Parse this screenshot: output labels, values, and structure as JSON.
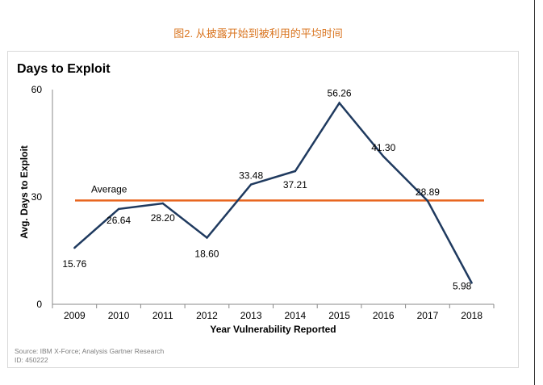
{
  "caption": "图2. 从披露开始到被利用的平均时间",
  "source_line": "Source: IBM X-Force; Analysis Gartner Research",
  "id_line": "ID: 450222",
  "colors": {
    "caption": "#d9741f",
    "line": "#1f3a5f",
    "average": "#e8641e",
    "axis": "#888888",
    "text": "#000000"
  },
  "chart_data": {
    "type": "line",
    "title": "Days to Exploit",
    "xlabel": "Year Vulnerability Reported",
    "ylabel": "Avg. Days to Exploit",
    "categories": [
      "2009",
      "2010",
      "2011",
      "2012",
      "2013",
      "2014",
      "2015",
      "2016",
      "2017",
      "2018"
    ],
    "series": [
      {
        "name": "Days to Exploit",
        "values": [
          15.76,
          26.64,
          28.2,
          18.6,
          33.48,
          37.21,
          56.26,
          41.3,
          28.89,
          5.98
        ]
      }
    ],
    "data_labels": [
      "15.76",
      "26.64",
      "28.20",
      "18.60",
      "33.48",
      "37.21",
      "56.26",
      "41.30",
      "28.89",
      "5.98"
    ],
    "average": {
      "label": "Average",
      "value": 29
    },
    "ylim": [
      0,
      60
    ],
    "yticks": [
      "0",
      "30",
      "60"
    ],
    "grid": false
  }
}
